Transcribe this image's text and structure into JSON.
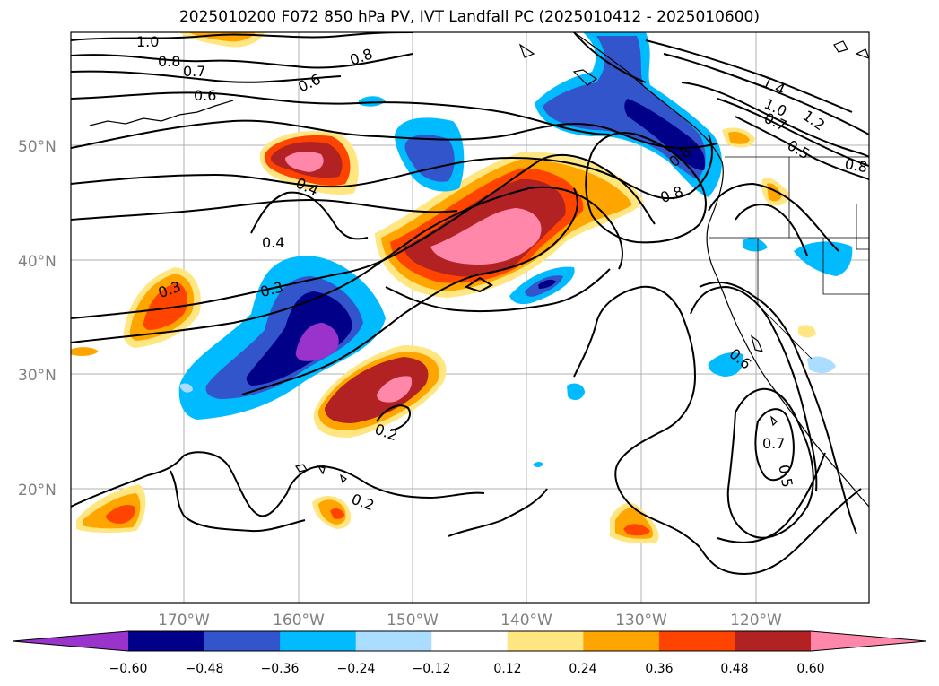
{
  "title": "2025010200 F072 850 hPa PV, IVT Landfall PC (2025010412 - 2025010600)",
  "map": {
    "lat_labels": [
      "50°N",
      "40°N",
      "30°N",
      "20°N"
    ],
    "lon_labels": [
      "170°W",
      "160°W",
      "150°W",
      "140°W",
      "130°W",
      "120°W"
    ],
    "contour_labels": [
      "1.0",
      "0.8",
      "0.7",
      "0.6",
      "0.6",
      "0.8",
      "0.4",
      "0.4",
      "0.3",
      "0.3",
      "0.2",
      "0.2",
      "0.8",
      "0.8",
      "1.4",
      "1.0",
      "0.7",
      "1.2",
      "0.5",
      "0.8",
      "0.6",
      "0.7",
      "0.5"
    ]
  },
  "colorbar": {
    "ticks": [
      "−0.60",
      "−0.48",
      "−0.36",
      "−0.24",
      "−0.12",
      "0.12",
      "0.24",
      "0.36",
      "0.48",
      "0.60"
    ],
    "colors": [
      "#9933cc",
      "#000088",
      "#3355cc",
      "#00bbff",
      "#aaddff",
      "#ffffff",
      "#ffe680",
      "#ffa500",
      "#ff4400",
      "#b22222",
      "#ff88aa"
    ]
  }
}
